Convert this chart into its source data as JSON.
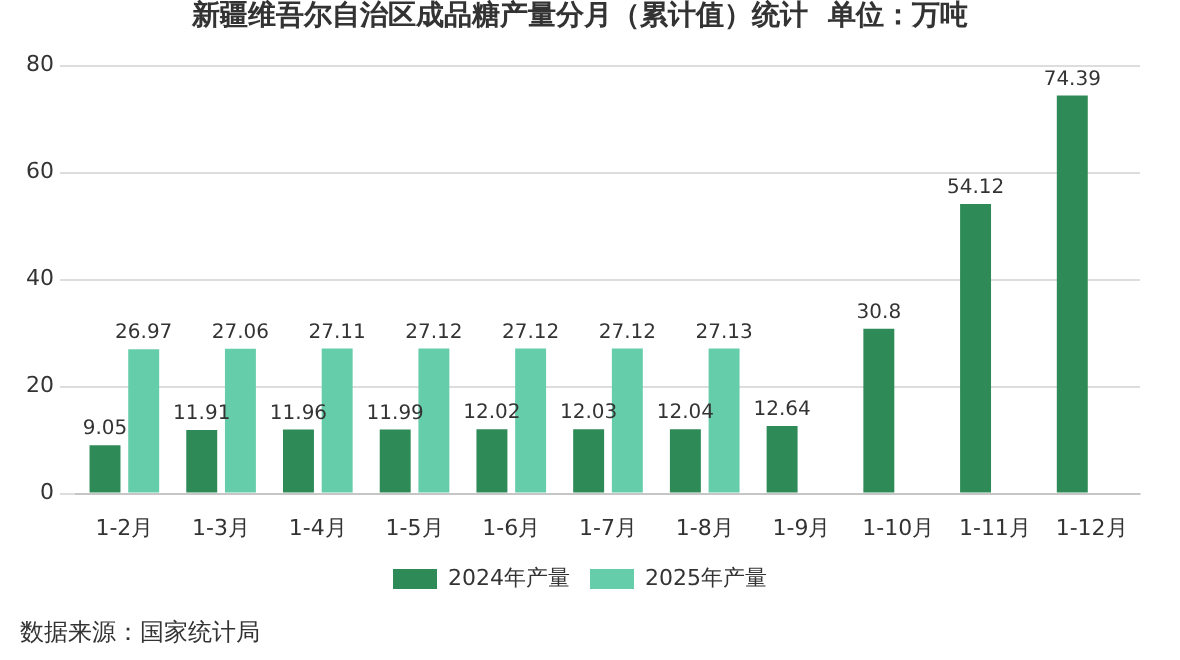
{
  "chart_data": {
    "type": "bar",
    "title": "新疆维吾尔自治区成品糖产量分月（累计值）统计  单位：万吨",
    "categories": [
      "1-2月",
      "1-3月",
      "1-4月",
      "1-5月",
      "1-6月",
      "1-7月",
      "1-8月",
      "1-9月",
      "1-10月",
      "1-11月",
      "1-12月"
    ],
    "series": [
      {
        "name": "2024年产量",
        "color": "#2e8b57",
        "values": [
          9.05,
          11.91,
          11.96,
          11.99,
          12.02,
          12.03,
          12.04,
          12.64,
          30.8,
          54.12,
          74.39
        ]
      },
      {
        "name": "2025年产量",
        "color": "#66cdaa",
        "values": [
          26.97,
          27.06,
          27.11,
          27.12,
          27.12,
          27.12,
          27.13,
          null,
          null,
          null,
          null
        ]
      }
    ],
    "ylim": [
      0,
      80
    ],
    "yticks": [
      0,
      20,
      40,
      60,
      80
    ],
    "grid": "y",
    "legend": "bottom",
    "data_labels": true,
    "annotations": [
      "数据来源：国家统计局"
    ]
  }
}
